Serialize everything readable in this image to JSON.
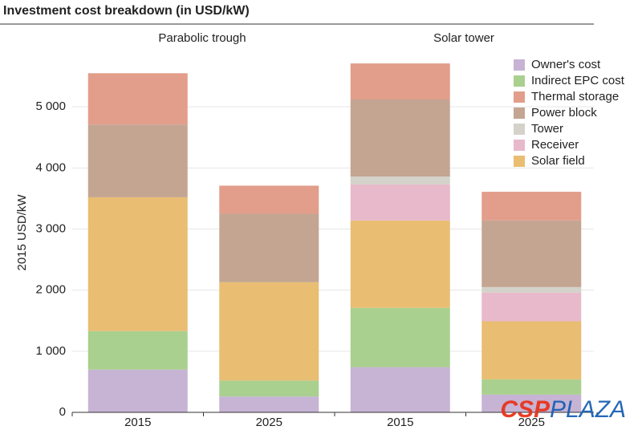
{
  "chart_data": {
    "type": "stacked_bar",
    "title": "Investment cost breakdown (in USD/kW)",
    "ylabel": "2015 USD/kW",
    "groups": [
      "Parabolic trough",
      "Solar tower"
    ],
    "categories": [
      "2015",
      "2025",
      "2015",
      "2025"
    ],
    "series": [
      {
        "name": "Owner's cost",
        "color": "#c7b3d4",
        "values": [
          700,
          260,
          740,
          290
        ]
      },
      {
        "name": "Indirect EPC cost",
        "color": "#a9d08e",
        "values": [
          630,
          260,
          970,
          250
        ]
      },
      {
        "name": "Thermal storage",
        "color": "#e29e8a",
        "values": [
          840,
          460,
          590,
          470
        ]
      },
      {
        "name": "Power block",
        "color": "#c3a592",
        "values": [
          1190,
          1120,
          1260,
          1090
        ]
      },
      {
        "name": "Tower",
        "color": "#d4d2ca",
        "values": [
          0,
          0,
          130,
          90
        ]
      },
      {
        "name": "Receiver",
        "color": "#e8b9cb",
        "values": [
          0,
          0,
          590,
          470
        ]
      },
      {
        "name": "Solar field",
        "color": "#e9bd72",
        "values": [
          2190,
          1610,
          1430,
          950
        ]
      }
    ],
    "ylim": [
      0,
      6000
    ],
    "yticks": [
      0,
      {
        "value": 1000,
        "label": "1 000"
      },
      {
        "value": 2000,
        "label": "2 000"
      },
      {
        "value": 3000,
        "label": "3 000"
      },
      {
        "value": 4000,
        "label": "4 000"
      },
      {
        "value": 5000,
        "label": "5 000"
      }
    ],
    "grid": true,
    "legend": "upper right",
    "watermark": [
      "CSP",
      "PLAZA"
    ]
  }
}
